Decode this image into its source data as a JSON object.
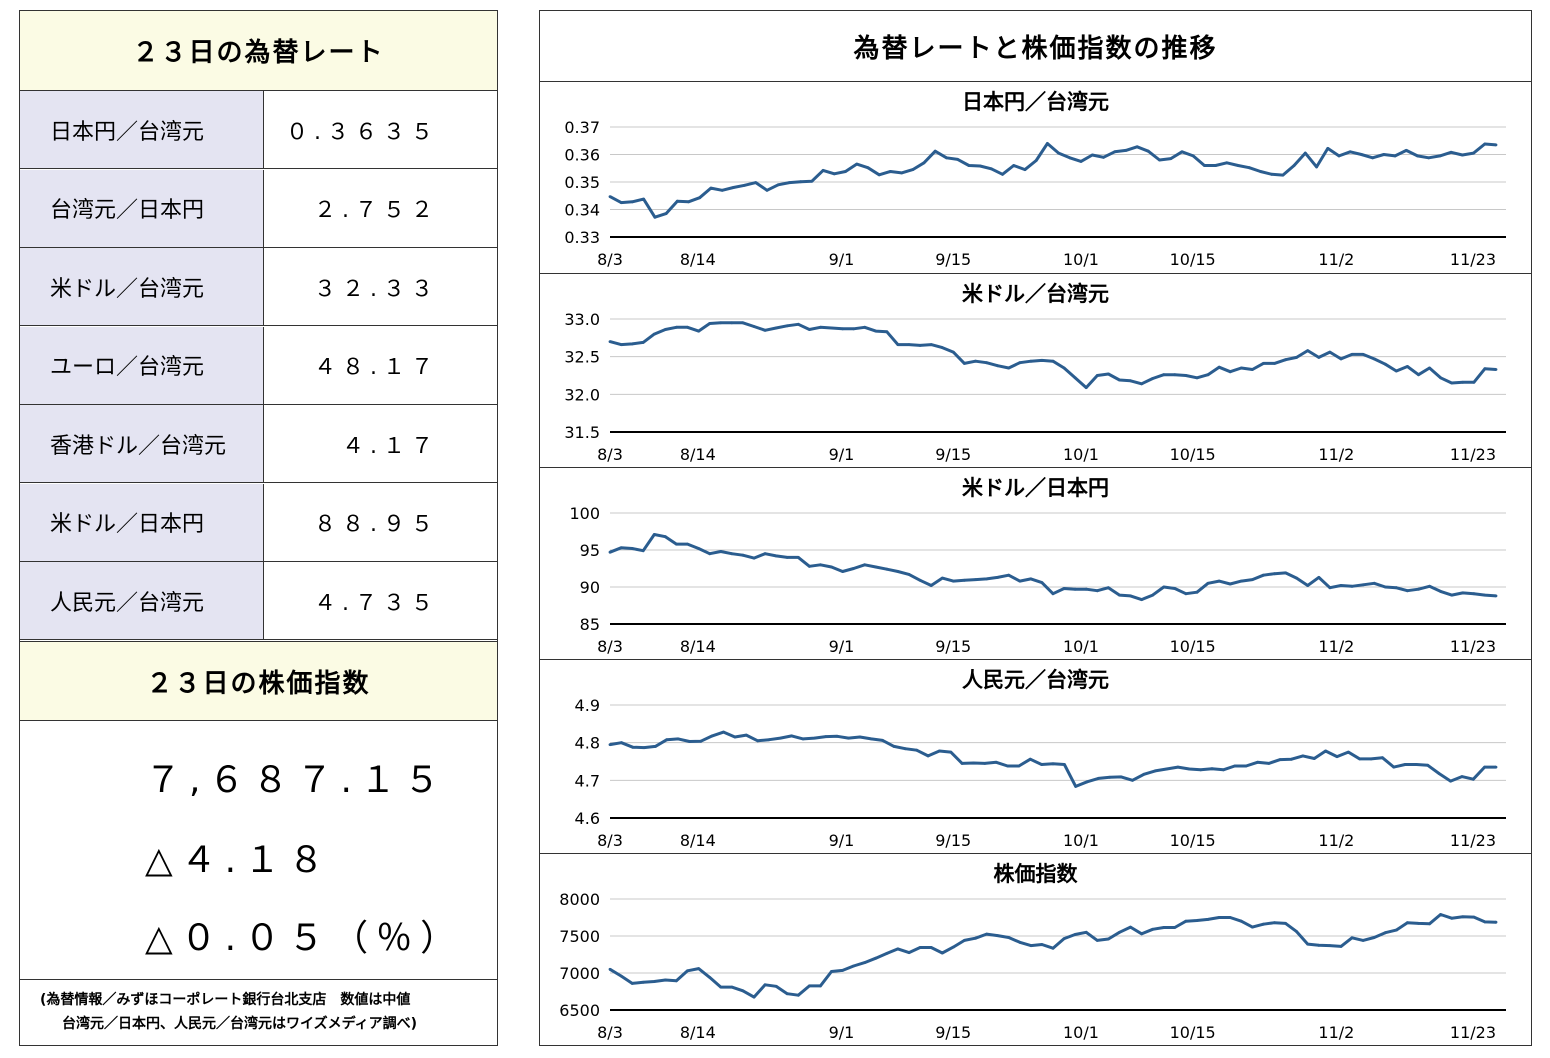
{
  "left": {
    "rates_title": "２３日の為替レート",
    "rates": [
      {
        "name": "日本円／台湾元",
        "value": "０.３６３５"
      },
      {
        "name": "台湾元／日本円",
        "value": "２.７５２"
      },
      {
        "name": "米ドル／台湾元",
        "value": "３２.３３"
      },
      {
        "name": "ユーロ／台湾元",
        "value": "４８.１７"
      },
      {
        "name": "香港ドル／台湾元",
        "value": "４.１７"
      },
      {
        "name": "米ドル／日本円",
        "value": "８８.９５"
      },
      {
        "name": "人民元／台湾元",
        "value": "４.７３５"
      }
    ],
    "stock_title": "２３日の株価指数",
    "stock_value": "７,６８７.１５",
    "stock_change": "△４.１８",
    "stock_change_pct": "△０.０５（％）",
    "source_line1": "(為替情報／みずほコーポレート銀行台北支店　数値は中値",
    "source_line2": "台湾元／日本円、人民元／台湾元はワイズメディア調べ)"
  },
  "right": {
    "title": "為替レートと株価指数の推移"
  },
  "colors": {
    "line": "#2b5d8f",
    "header_bg": "#fbfbe4",
    "label_bg": "#e4e4f2"
  },
  "chart_data": [
    {
      "type": "line",
      "title": "日本円／台湾元",
      "x_ticks": [
        "8/3",
        "8/14",
        "9/1",
        "9/15",
        "10/1",
        "10/15",
        "11/2",
        "11/23"
      ],
      "ylim": [
        0.33,
        0.37
      ],
      "y_ticks": [
        "0.37",
        "0.36",
        "0.35",
        "0.34",
        "0.33"
      ],
      "values": [
        0.3447,
        0.3425,
        0.3428,
        0.3438,
        0.3372,
        0.3385,
        0.343,
        0.3428,
        0.3443,
        0.3478,
        0.347,
        0.348,
        0.3488,
        0.3498,
        0.347,
        0.349,
        0.3498,
        0.3501,
        0.3503,
        0.3542,
        0.353,
        0.3538,
        0.3565,
        0.3552,
        0.3526,
        0.3538,
        0.3533,
        0.3545,
        0.357,
        0.3612,
        0.3588,
        0.3582,
        0.356,
        0.3558,
        0.3548,
        0.3528,
        0.356,
        0.3545,
        0.3578,
        0.364,
        0.3605,
        0.3588,
        0.3575,
        0.3598,
        0.359,
        0.361,
        0.3615,
        0.3628,
        0.3612,
        0.358,
        0.3585,
        0.361,
        0.3595,
        0.356,
        0.356,
        0.357,
        0.356,
        0.3552,
        0.3538,
        0.3528,
        0.3525,
        0.356,
        0.3605,
        0.3555,
        0.3622,
        0.3595,
        0.361,
        0.36,
        0.3588,
        0.36,
        0.3595,
        0.3615,
        0.3595,
        0.3588,
        0.3595,
        0.3608,
        0.3598,
        0.3605,
        0.3638,
        0.3635
      ]
    },
    {
      "type": "line",
      "title": "米ドル／台湾元",
      "x_ticks": [
        "8/3",
        "8/14",
        "9/1",
        "9/15",
        "10/1",
        "10/15",
        "11/2",
        "11/23"
      ],
      "ylim": [
        31.5,
        33.0
      ],
      "y_ticks": [
        "33.0",
        "32.5",
        "32.0",
        "31.5"
      ],
      "values": [
        32.7,
        32.66,
        32.67,
        32.69,
        32.8,
        32.86,
        32.89,
        32.89,
        32.84,
        32.94,
        32.95,
        32.95,
        32.95,
        32.9,
        32.85,
        32.88,
        32.91,
        32.93,
        32.86,
        32.89,
        32.88,
        32.87,
        32.87,
        32.89,
        32.84,
        32.83,
        32.66,
        32.66,
        32.65,
        32.66,
        32.62,
        32.56,
        32.41,
        32.44,
        32.42,
        32.38,
        32.35,
        32.42,
        32.44,
        32.45,
        32.44,
        32.35,
        32.22,
        32.09,
        32.25,
        32.27,
        32.19,
        32.18,
        32.14,
        32.21,
        32.26,
        32.26,
        32.25,
        32.22,
        32.26,
        32.36,
        32.3,
        32.35,
        32.33,
        32.41,
        32.41,
        32.46,
        32.49,
        32.58,
        32.49,
        32.56,
        32.47,
        32.53,
        32.53,
        32.47,
        32.4,
        32.31,
        32.37,
        32.26,
        32.35,
        32.22,
        32.15,
        32.16,
        32.16,
        32.34,
        32.33
      ]
    },
    {
      "type": "line",
      "title": "米ドル／日本円",
      "x_ticks": [
        "8/3",
        "8/14",
        "9/1",
        "9/15",
        "10/1",
        "10/15",
        "11/2",
        "11/23"
      ],
      "ylim": [
        85,
        100
      ],
      "y_ticks": [
        "100",
        "95",
        "90",
        "85"
      ],
      "values": [
        94.7,
        95.3,
        95.2,
        94.9,
        97.1,
        96.8,
        95.8,
        95.8,
        95.2,
        94.5,
        94.8,
        94.5,
        94.3,
        93.9,
        94.5,
        94.2,
        94.0,
        94.0,
        92.8,
        93.0,
        92.7,
        92.1,
        92.5,
        93.0,
        92.7,
        92.4,
        92.1,
        91.7,
        90.9,
        90.2,
        91.2,
        90.8,
        90.9,
        91.0,
        91.1,
        91.3,
        91.6,
        90.8,
        91.1,
        90.6,
        89.1,
        89.8,
        89.7,
        89.7,
        89.5,
        89.9,
        88.9,
        88.8,
        88.3,
        88.9,
        90.0,
        89.8,
        89.1,
        89.3,
        90.5,
        90.8,
        90.4,
        90.8,
        91.0,
        91.6,
        91.8,
        91.9,
        91.2,
        90.2,
        91.3,
        89.9,
        90.2,
        90.1,
        90.3,
        90.5,
        90.0,
        89.9,
        89.5,
        89.7,
        90.1,
        89.4,
        88.9,
        89.2,
        89.1,
        88.9,
        88.8
      ]
    },
    {
      "type": "line",
      "title": "人民元／台湾元",
      "x_ticks": [
        "8/3",
        "8/14",
        "9/1",
        "9/15",
        "10/1",
        "10/15",
        "11/2",
        "11/23"
      ],
      "ylim": [
        4.6,
        4.9
      ],
      "y_ticks": [
        "4.9",
        "4.8",
        "4.7",
        "4.6"
      ],
      "values": [
        4.795,
        4.8,
        4.788,
        4.787,
        4.79,
        4.808,
        4.81,
        4.803,
        4.804,
        4.818,
        4.828,
        4.815,
        4.82,
        4.805,
        4.808,
        4.812,
        4.818,
        4.81,
        4.812,
        4.816,
        4.817,
        4.812,
        4.815,
        4.81,
        4.806,
        4.79,
        4.784,
        4.78,
        4.765,
        4.778,
        4.775,
        4.745,
        4.746,
        4.745,
        4.748,
        4.738,
        4.738,
        4.756,
        4.742,
        4.744,
        4.742,
        4.684,
        4.696,
        4.705,
        4.708,
        4.709,
        4.7,
        4.716,
        4.725,
        4.73,
        4.735,
        4.73,
        4.728,
        4.731,
        4.728,
        4.738,
        4.738,
        4.748,
        4.745,
        4.755,
        4.756,
        4.765,
        4.758,
        4.778,
        4.763,
        4.775,
        4.757,
        4.757,
        4.76,
        4.735,
        4.742,
        4.742,
        4.74,
        4.718,
        4.698,
        4.71,
        4.703,
        4.735,
        4.735
      ]
    },
    {
      "type": "line",
      "title": "株価指数",
      "x_ticks": [
        "8/3",
        "8/14",
        "9/1",
        "9/15",
        "10/1",
        "10/15",
        "11/2",
        "11/23"
      ],
      "ylim": [
        6500,
        8000
      ],
      "y_ticks": [
        "8000",
        "7500",
        "7000",
        "6500"
      ],
      "values": [
        7050,
        6960,
        6860,
        6875,
        6885,
        6905,
        6895,
        7030,
        7060,
        6940,
        6810,
        6810,
        6760,
        6675,
        6840,
        6820,
        6720,
        6700,
        6825,
        6825,
        7020,
        7035,
        7095,
        7140,
        7200,
        7265,
        7325,
        7275,
        7345,
        7345,
        7270,
        7350,
        7440,
        7470,
        7525,
        7505,
        7480,
        7415,
        7370,
        7385,
        7335,
        7465,
        7520,
        7550,
        7440,
        7460,
        7550,
        7620,
        7530,
        7590,
        7615,
        7615,
        7700,
        7710,
        7725,
        7750,
        7750,
        7700,
        7620,
        7660,
        7680,
        7670,
        7560,
        7390,
        7375,
        7370,
        7360,
        7475,
        7440,
        7480,
        7545,
        7580,
        7680,
        7670,
        7665,
        7790,
        7740,
        7760,
        7755,
        7690,
        7687
      ]
    }
  ]
}
